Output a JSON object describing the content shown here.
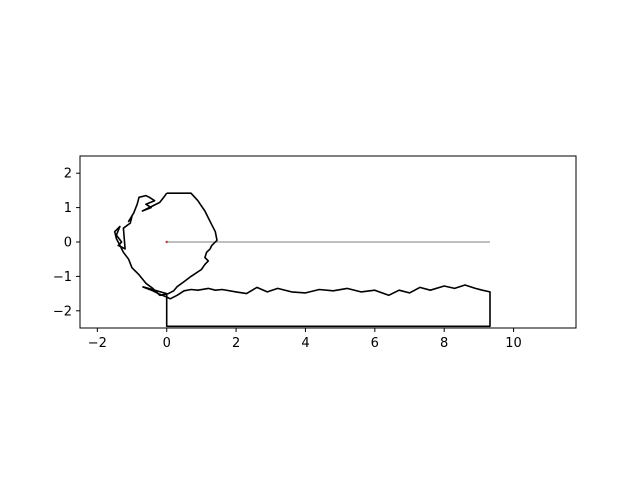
{
  "chart_data": {
    "type": "line",
    "title": "",
    "xlabel": "",
    "ylabel": "",
    "xlim": [
      -2.5,
      11.8
    ],
    "ylim": [
      -2.5,
      2.5
    ],
    "x_ticks": [
      -2,
      0,
      2,
      4,
      6,
      8,
      10
    ],
    "y_ticks": [
      -2,
      -1,
      0,
      1,
      2
    ],
    "x_tick_labels": [
      "−2",
      "0",
      "2",
      "4",
      "6",
      "8",
      "10"
    ],
    "y_tick_labels": [
      "−2",
      "−1",
      "0",
      "1",
      "2"
    ],
    "grid": false,
    "legend": "none",
    "series": [
      {
        "role": "outline",
        "color": "#000000",
        "x": [
          -0.7,
          -0.4,
          -0.2,
          0.0,
          0.1,
          0.3,
          0.5,
          0.7,
          0.9,
          1.2,
          1.4,
          1.6,
          2.0,
          2.3,
          2.6,
          2.9,
          3.2,
          3.6,
          4.0,
          4.4,
          4.8,
          5.2,
          5.6,
          6.0,
          6.4,
          6.7,
          7.0,
          7.3,
          7.6,
          8.0,
          8.3,
          8.6,
          8.9,
          9.1,
          9.32,
          9.32,
          0.0,
          0.0,
          -0.7
        ],
        "y": [
          -1.3,
          -1.42,
          -1.52,
          -1.6,
          -1.65,
          -1.55,
          -1.42,
          -1.38,
          -1.4,
          -1.35,
          -1.4,
          -1.38,
          -1.45,
          -1.5,
          -1.32,
          -1.45,
          -1.35,
          -1.45,
          -1.48,
          -1.38,
          -1.42,
          -1.35,
          -1.45,
          -1.4,
          -1.55,
          -1.4,
          -1.48,
          -1.32,
          -1.4,
          -1.28,
          -1.35,
          -1.25,
          -1.35,
          -1.4,
          -1.45,
          -2.45,
          -2.45,
          -1.5,
          -1.3
        ]
      },
      {
        "role": "outline",
        "color": "#000000",
        "x": [
          0.0,
          0.3,
          0.7,
          0.9,
          1.0,
          1.1,
          1.2,
          1.3,
          1.4,
          1.45,
          1.3,
          1.25,
          1.15,
          1.1,
          1.2,
          1.1,
          1.0,
          0.7,
          0.5,
          0.3,
          0.2,
          0.05,
          -0.2,
          -0.4,
          -0.6,
          -0.8,
          -1.0,
          -1.1,
          -1.25,
          -1.35,
          -1.45,
          -1.5,
          -1.35,
          -1.45,
          -1.3,
          -1.4,
          -1.2,
          -1.25,
          -1.05,
          -1.0,
          -1.1,
          -0.95,
          -0.85,
          -0.8,
          -0.6,
          -0.5,
          -0.35,
          -0.6,
          -0.45,
          -0.7,
          -0.2,
          -0.05,
          0.0
        ],
        "y": [
          1.42,
          1.42,
          1.42,
          1.2,
          1.05,
          0.9,
          0.7,
          0.5,
          0.3,
          0.05,
          -0.1,
          -0.2,
          -0.3,
          -0.45,
          -0.55,
          -0.65,
          -0.8,
          -1.0,
          -1.15,
          -1.3,
          -1.42,
          -1.5,
          -1.55,
          -1.35,
          -1.2,
          -0.95,
          -0.75,
          -0.5,
          -0.3,
          -0.1,
          0.1,
          0.3,
          0.45,
          0.2,
          0.0,
          -0.1,
          -0.2,
          0.4,
          0.55,
          0.75,
          0.6,
          0.85,
          1.1,
          1.3,
          1.35,
          1.3,
          1.2,
          1.1,
          1.0,
          0.9,
          1.15,
          1.35,
          1.42
        ]
      },
      {
        "role": "reference-line",
        "color": "#000000",
        "x": [
          0.0,
          9.32
        ],
        "y": [
          0.0,
          0.0
        ]
      }
    ],
    "marker": {
      "x": 0.0,
      "y": 0.0,
      "color": "#c0392b"
    }
  }
}
